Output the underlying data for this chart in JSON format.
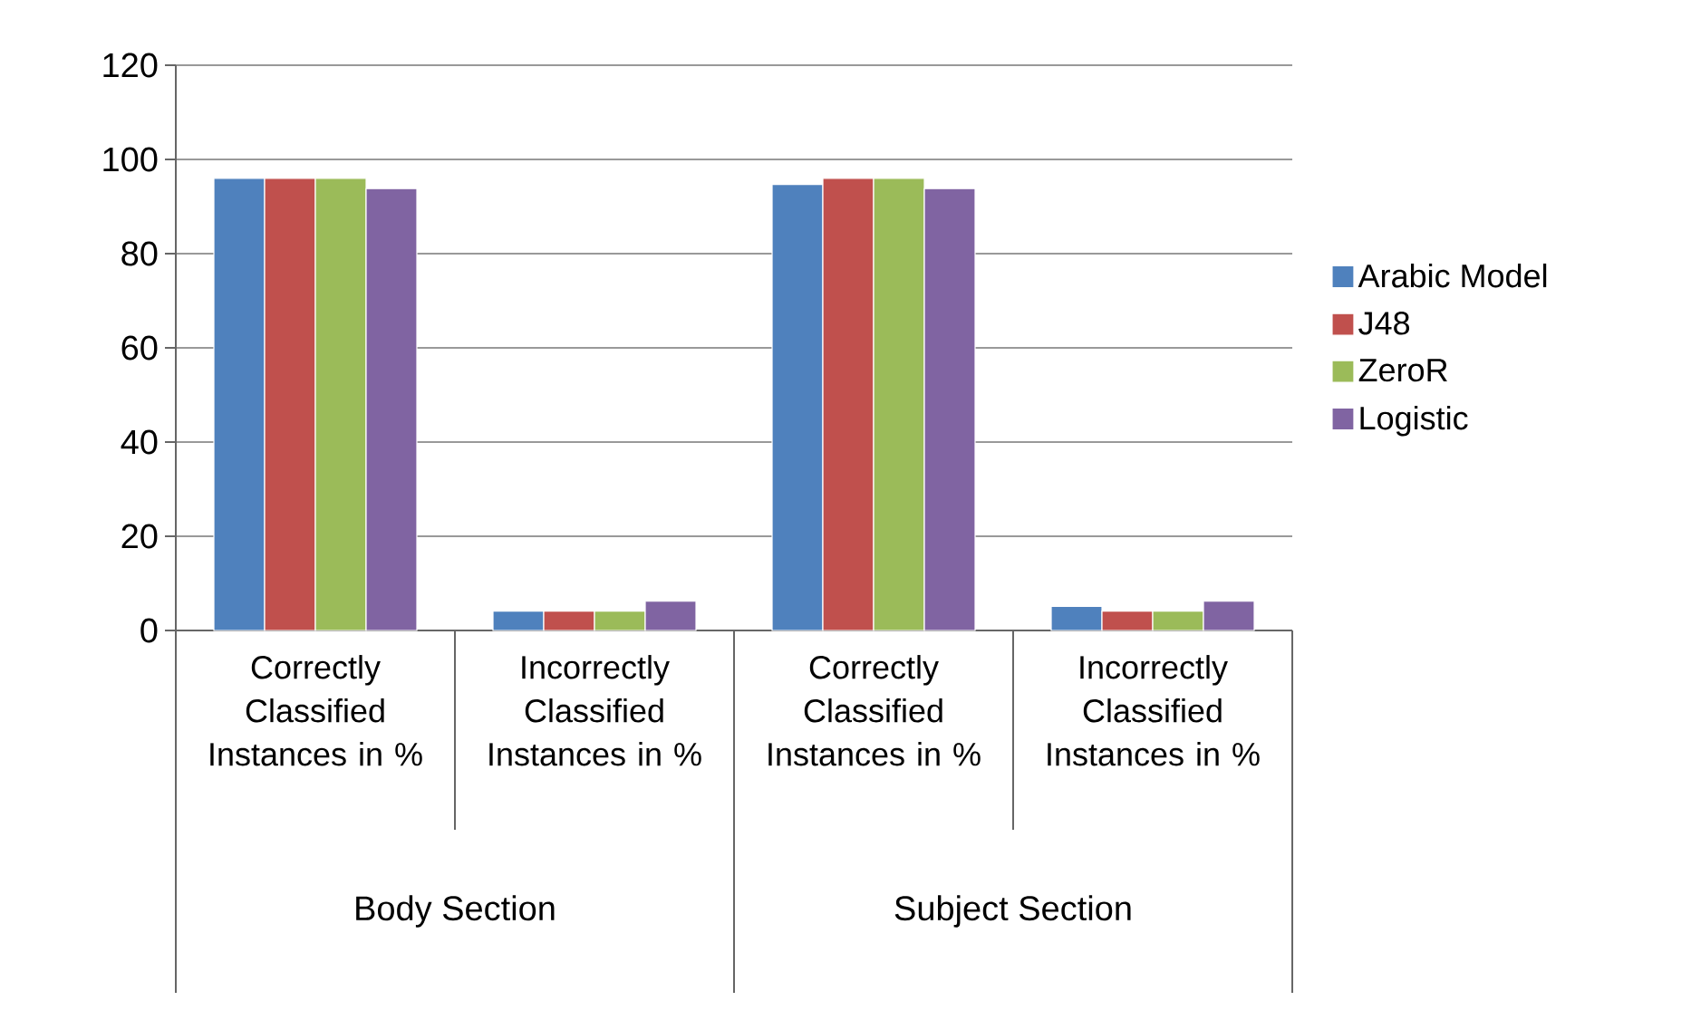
{
  "chart_data": {
    "type": "bar",
    "categories": [
      "Correctly Classified Instances in %",
      "Incorrectly Classified Instances in %",
      "Correctly Classified Instances in %",
      "Incorrectly Classified Instances in %"
    ],
    "series": [
      {
        "name": "Arabic Model",
        "color": "#4f81bd",
        "values": [
          96,
          4.1,
          94.7,
          5.1
        ]
      },
      {
        "name": "J48",
        "color": "#c0504d",
        "values": [
          96,
          4.1,
          96,
          4.1
        ]
      },
      {
        "name": "ZeroR",
        "color": "#9bbb59",
        "values": [
          96,
          4.1,
          96,
          4.1
        ]
      },
      {
        "name": "Logistic",
        "color": "#8064a2",
        "values": [
          93.8,
          6.2,
          93.8,
          6.2
        ]
      }
    ],
    "annotations": [
      "Body Section",
      "Subject Section"
    ],
    "ylim": [
      0,
      120
    ],
    "yticks": [
      0,
      20,
      40,
      60,
      80,
      100,
      120
    ],
    "grid": "y",
    "legend": "right"
  }
}
